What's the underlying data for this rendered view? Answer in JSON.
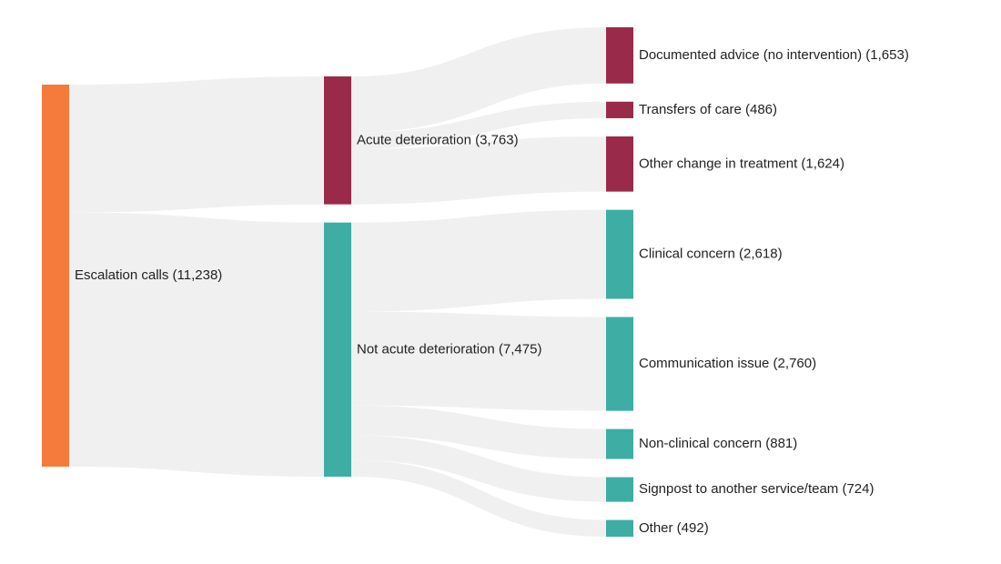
{
  "chart_data": {
    "type": "sankey",
    "columns": [
      [
        {
          "id": "escalation",
          "label": "Escalation calls (11,238)",
          "value": 11238,
          "color": "#f47b3c"
        }
      ],
      [
        {
          "id": "acute",
          "label": "Acute deterioration (3,763)",
          "value": 3763,
          "color": "#9a2a4a"
        },
        {
          "id": "not_acute",
          "label": "Not acute deterioration (7,475)",
          "value": 7475,
          "color": "#3eada4"
        }
      ],
      [
        {
          "id": "documented",
          "label": "Documented advice (no intervention) (1,653)",
          "value": 1653,
          "color": "#9a2a4a"
        },
        {
          "id": "transfers",
          "label": "Transfers of care (486)",
          "value": 486,
          "color": "#9a2a4a"
        },
        {
          "id": "other_change",
          "label": "Other change in treatment (1,624)",
          "value": 1624,
          "color": "#9a2a4a"
        },
        {
          "id": "clinical",
          "label": "Clinical concern (2,618)",
          "value": 2618,
          "color": "#3eada4"
        },
        {
          "id": "communication",
          "label": "Communication issue (2,760)",
          "value": 2760,
          "color": "#3eada4"
        },
        {
          "id": "nonclinical",
          "label": "Non-clinical concern (881)",
          "value": 881,
          "color": "#3eada4"
        },
        {
          "id": "signpost",
          "label": "Signpost to another service/team (724)",
          "value": 724,
          "color": "#3eada4"
        },
        {
          "id": "other",
          "label": "Other (492)",
          "value": 492,
          "color": "#3eada4"
        }
      ]
    ],
    "links": [
      {
        "source": "escalation",
        "target": "acute",
        "value": 3763
      },
      {
        "source": "escalation",
        "target": "not_acute",
        "value": 7475
      },
      {
        "source": "acute",
        "target": "documented",
        "value": 1653
      },
      {
        "source": "acute",
        "target": "transfers",
        "value": 486
      },
      {
        "source": "acute",
        "target": "other_change",
        "value": 1624
      },
      {
        "source": "not_acute",
        "target": "clinical",
        "value": 2618
      },
      {
        "source": "not_acute",
        "target": "communication",
        "value": 2760
      },
      {
        "source": "not_acute",
        "target": "nonclinical",
        "value": 881
      },
      {
        "source": "not_acute",
        "target": "signpost",
        "value": 724
      },
      {
        "source": "not_acute",
        "target": "other",
        "value": 492
      }
    ],
    "link_color": "#f0f0f0"
  }
}
